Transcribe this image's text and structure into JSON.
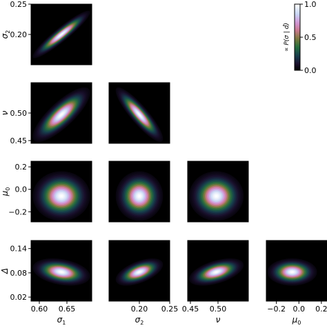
{
  "chart_data": {
    "type": "heatmap",
    "plot_kind": "corner",
    "colormap": "cubehelix",
    "grid": false,
    "parameters": [
      {
        "name": "σ1",
        "label": "σ",
        "sub": "1",
        "range": [
          0.585,
          0.695
        ],
        "ticks": [
          0.6,
          0.65
        ],
        "tick_labels": [
          "0.60",
          "0.65"
        ],
        "mean": 0.64,
        "sd": 0.02
      },
      {
        "name": "σ2",
        "label": "σ",
        "sub": "2",
        "range": [
          0.15,
          0.25
        ],
        "ticks": [
          0.2,
          0.25
        ],
        "tick_labels": [
          "0.20",
          "0.25"
        ],
        "mean": 0.2,
        "sd": 0.015
      },
      {
        "name": "ν",
        "label": "ν",
        "sub": "",
        "range": [
          0.445,
          0.555
        ],
        "ticks": [
          0.45,
          0.5
        ],
        "tick_labels": [
          "0.45",
          "0.50"
        ],
        "mean": 0.497,
        "sd": 0.019
      },
      {
        "name": "μ0",
        "label": "μ",
        "sub": "0",
        "range": [
          -0.29,
          0.25
        ],
        "ticks": [
          -0.2,
          0.0,
          0.2
        ],
        "tick_labels": [
          "−0.2",
          "0.0",
          "0.2"
        ],
        "mean": -0.06,
        "sd": 0.085
      },
      {
        "name": "Δ",
        "label": "Δ",
        "sub": "",
        "range": [
          0.01,
          0.16
        ],
        "ticks": [
          0.02,
          0.08,
          0.14
        ],
        "tick_labels": [
          "0.02",
          "0.08",
          "0.14"
        ],
        "mean": 0.082,
        "sd": 0.013
      }
    ],
    "correlations": [
      {
        "x": 0,
        "y": 1,
        "rho": 0.93
      },
      {
        "x": 0,
        "y": 2,
        "rho": 0.8
      },
      {
        "x": 1,
        "y": 2,
        "rho": -0.88
      },
      {
        "x": 0,
        "y": 3,
        "rho": 0.0
      },
      {
        "x": 1,
        "y": 3,
        "rho": 0.0
      },
      {
        "x": 2,
        "y": 3,
        "rho": 0.0
      },
      {
        "x": 0,
        "y": 4,
        "rho": -0.3
      },
      {
        "x": 1,
        "y": 4,
        "rho": 0.55
      },
      {
        "x": 2,
        "y": 4,
        "rho": 0.5
      },
      {
        "x": 3,
        "y": 4,
        "rho": 0.0
      }
    ],
    "colorbar": {
      "label": "∝ P(σ | d̂)",
      "range": [
        0.0,
        1.0
      ],
      "ticks": [
        0.0,
        0.5,
        1.0
      ],
      "tick_labels": [
        "0.0",
        "0.5",
        "1.0"
      ]
    }
  }
}
